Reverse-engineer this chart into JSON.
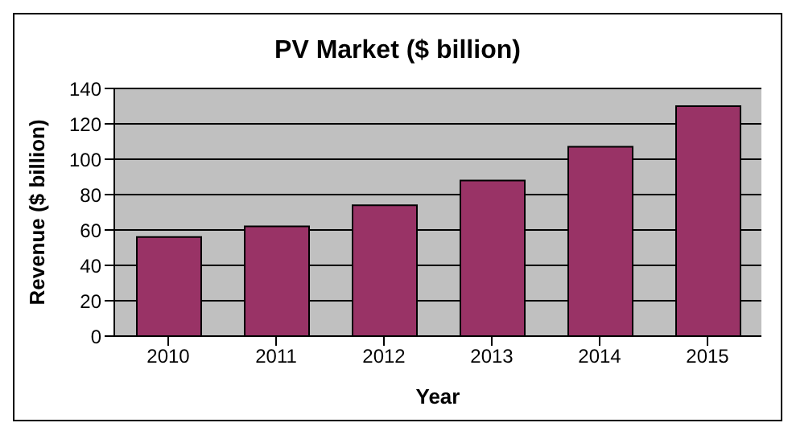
{
  "chart_data": {
    "type": "bar",
    "title": "PV Market ($ billion)",
    "xlabel": "Year",
    "ylabel": "Revenue ($ billion)",
    "categories": [
      "2010",
      "2011",
      "2012",
      "2013",
      "2014",
      "2015"
    ],
    "values": [
      56,
      62,
      74,
      88,
      107,
      130
    ],
    "color": "#993366",
    "ylim": [
      0,
      140
    ],
    "yticks": [
      0,
      20,
      40,
      60,
      80,
      100,
      120,
      140
    ],
    "grid": "y"
  }
}
